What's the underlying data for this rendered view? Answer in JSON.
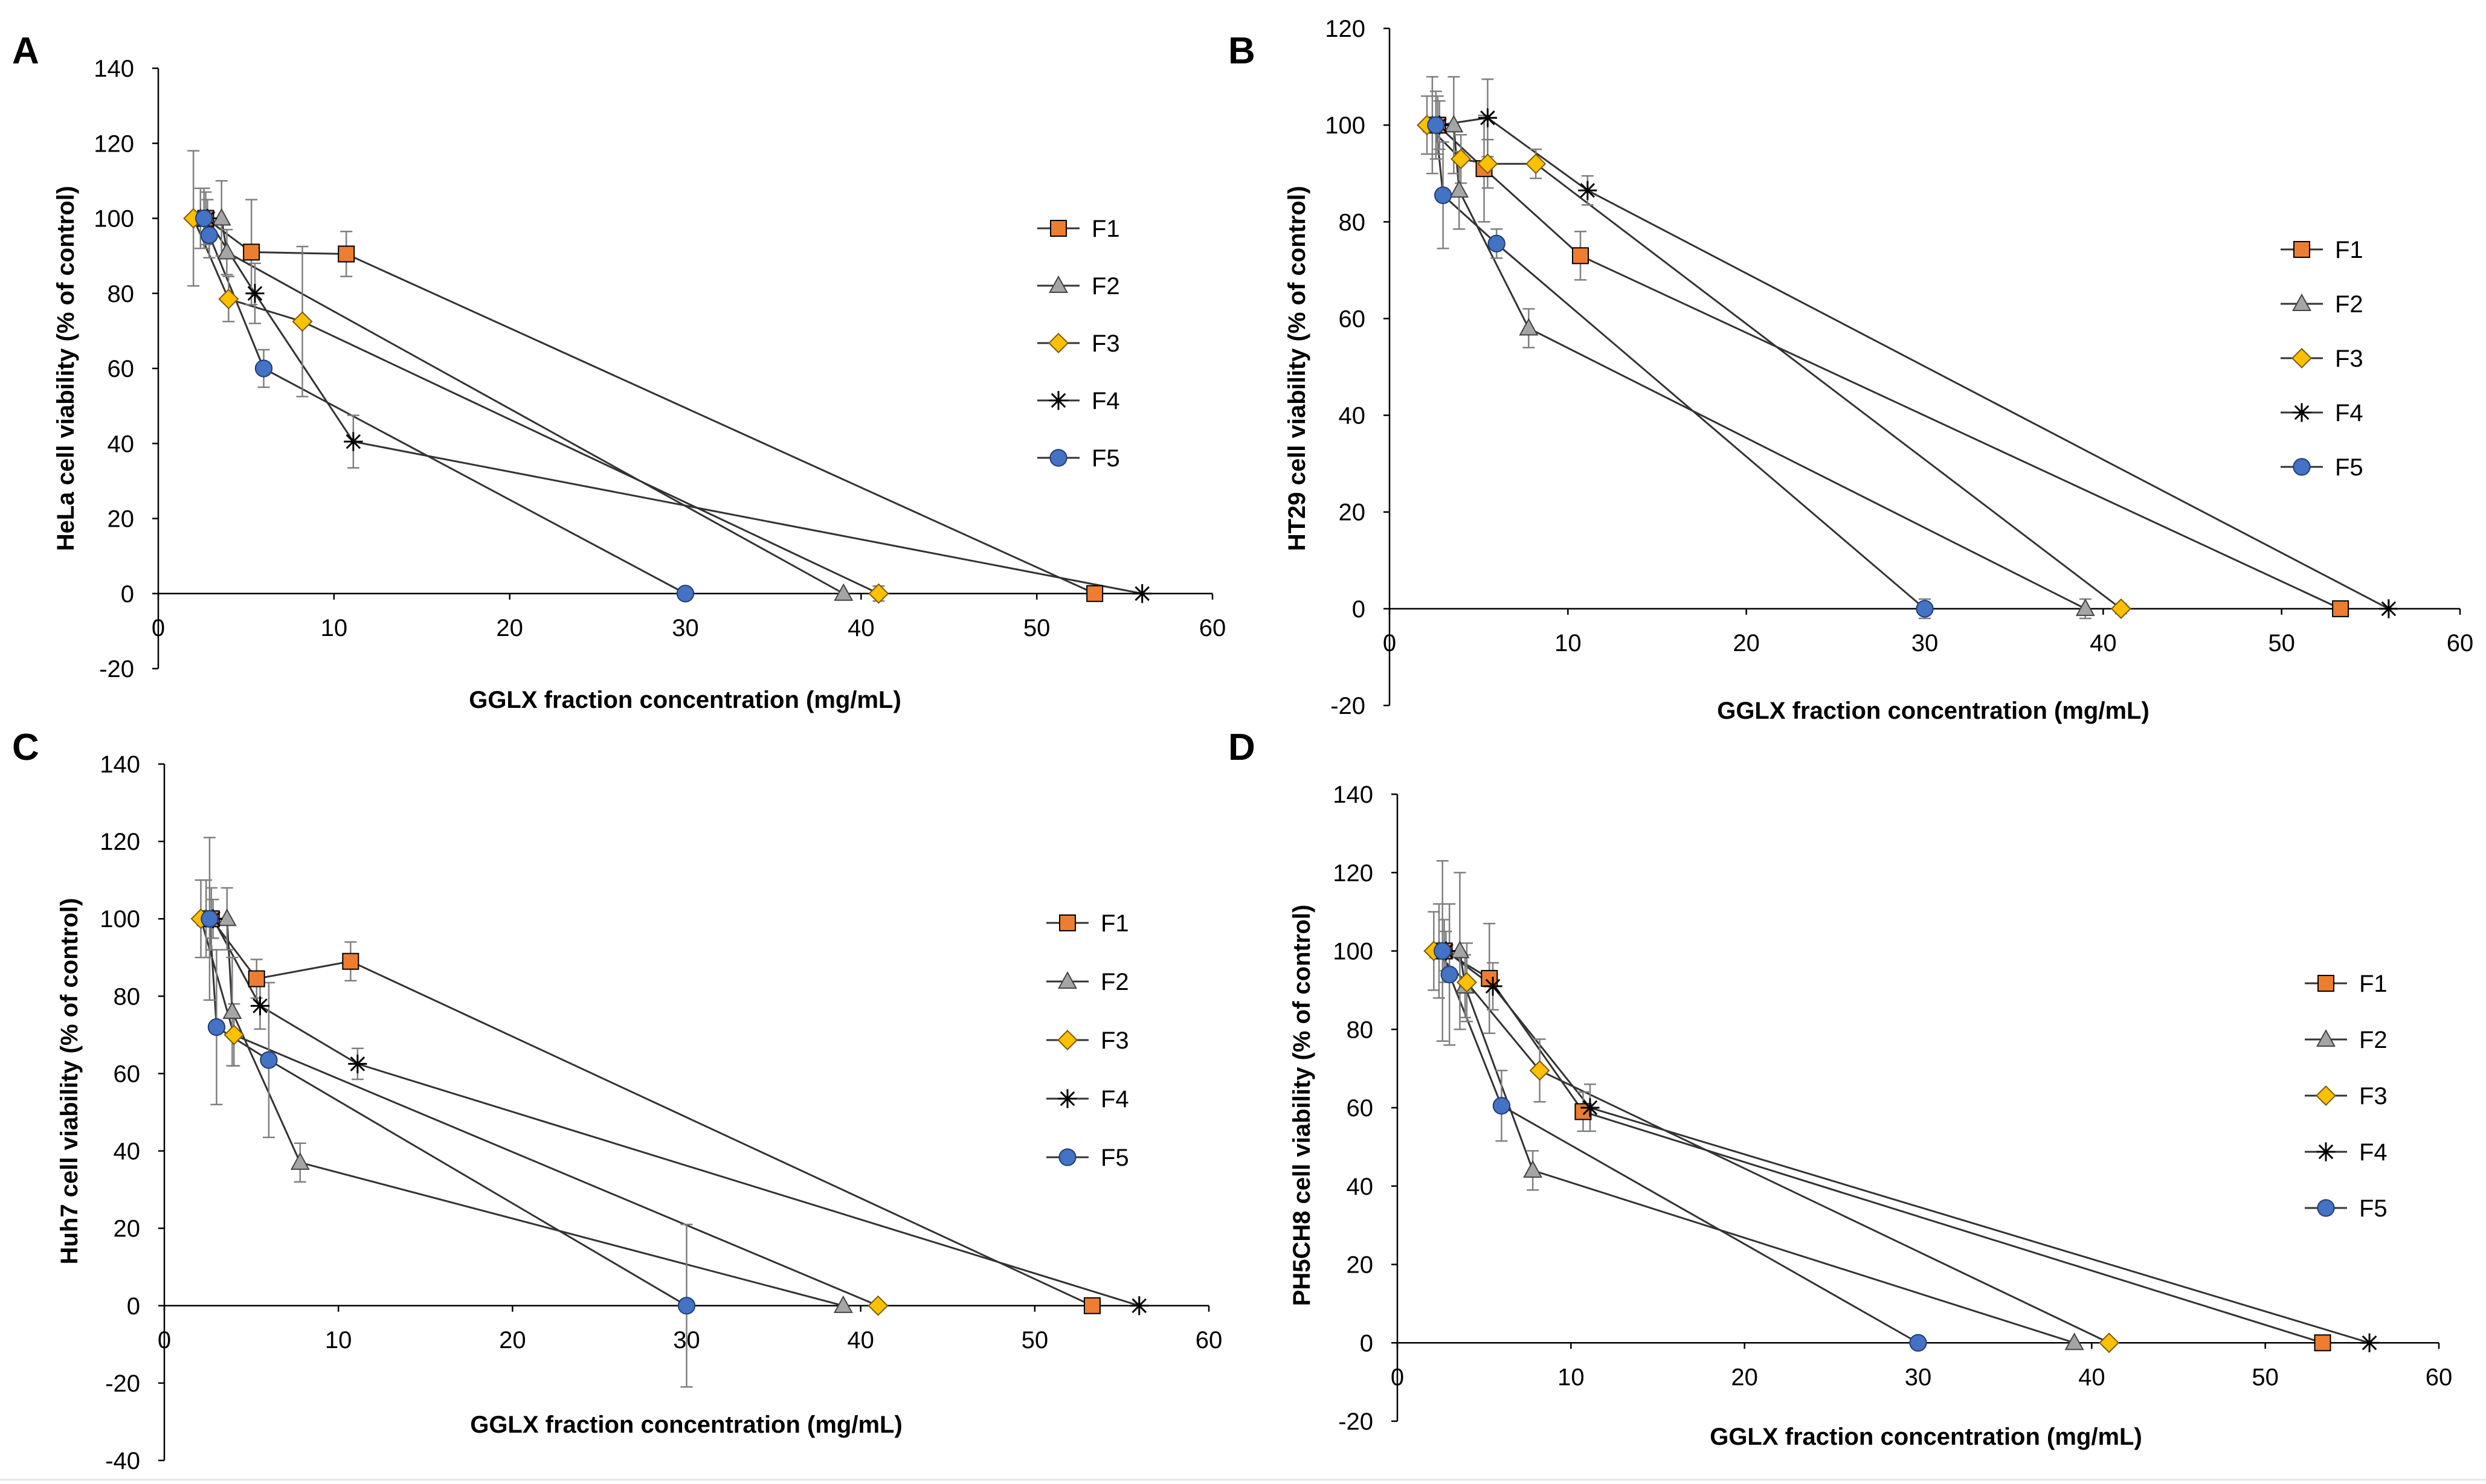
{
  "figure": {
    "colors": {
      "f1": "#ED7D31",
      "f2": "#A5A5A5",
      "f3": "#FFC000",
      "f4": "#000000",
      "f5": "#4472C4",
      "line": "#333333",
      "errbar": "#7f7f7f"
    },
    "icons": {
      "F1": "square-marker",
      "F2": "triangle-marker",
      "F3": "diamond-marker",
      "F4": "asterisk-marker",
      "F5": "circle-marker"
    }
  },
  "chart_data": [
    {
      "panel": "A",
      "type": "line",
      "title": "",
      "xlabel": "GGLX fraction concentration (mg/mL)",
      "ylabel": "HeLa cell viability (% of control)",
      "xlim": [
        0,
        60
      ],
      "ylim": [
        -20,
        140
      ],
      "xticks": [
        0,
        10,
        20,
        30,
        40,
        50,
        60
      ],
      "yticks": [
        -20,
        0,
        20,
        40,
        60,
        80,
        100,
        120,
        140
      ],
      "legend_position": "right",
      "series": [
        {
          "name": "F1",
          "x": [
            2.7,
            5.3,
            10.7,
            53.3
          ],
          "y": [
            100,
            91,
            90.5,
            0
          ],
          "err": [
            7,
            14,
            6,
            0
          ]
        },
        {
          "name": "F2",
          "x": [
            2.4,
            3.6,
            3.9,
            39
          ],
          "y": [
            100,
            100,
            91,
            0
          ],
          "err": [
            8,
            10,
            6,
            0
          ]
        },
        {
          "name": "F3",
          "x": [
            2,
            4,
            8.2,
            41
          ],
          "y": [
            100,
            78.5,
            72.5,
            0
          ],
          "err": [
            18,
            6,
            20,
            2
          ]
        },
        {
          "name": "F4",
          "x": [
            2.8,
            5.5,
            11.1,
            56
          ],
          "y": [
            100,
            80,
            40.5,
            0
          ],
          "err": [
            5,
            8,
            7,
            0
          ]
        },
        {
          "name": "F5",
          "x": [
            2.6,
            2.9,
            6,
            30
          ],
          "y": [
            100,
            95.5,
            60,
            0
          ],
          "err": [
            8,
            6,
            5,
            0
          ]
        }
      ]
    },
    {
      "panel": "B",
      "type": "line",
      "title": "",
      "xlabel": "GGLX fraction concentration (mg/mL)",
      "ylabel": "HT29 cell viability (% of control)",
      "xlim": [
        0,
        60
      ],
      "ylim": [
        -20,
        120
      ],
      "xticks": [
        0,
        10,
        20,
        30,
        40,
        50,
        60
      ],
      "yticks": [
        -20,
        0,
        20,
        40,
        60,
        80,
        100,
        120
      ],
      "legend_position": "right",
      "series": [
        {
          "name": "F1",
          "x": [
            2.7,
            5.3,
            10.7,
            53.3
          ],
          "y": [
            100,
            91,
            73,
            0
          ],
          "err": [
            6,
            11,
            5,
            0
          ]
        },
        {
          "name": "F2",
          "x": [
            2.4,
            3.6,
            3.9,
            7.8,
            39
          ],
          "y": [
            100,
            100,
            86.5,
            58,
            0
          ],
          "err": [
            10,
            10,
            8,
            4,
            2
          ]
        },
        {
          "name": "F3",
          "x": [
            2.1,
            4,
            5.5,
            8.2,
            41
          ],
          "y": [
            100,
            93,
            92,
            92,
            0
          ],
          "err": [
            6,
            5,
            5,
            3,
            1
          ]
        },
        {
          "name": "F4",
          "x": [
            2.8,
            5.5,
            11.1,
            56
          ],
          "y": [
            100,
            101.5,
            86.5,
            0
          ],
          "err": [
            5,
            8,
            3,
            0
          ]
        },
        {
          "name": "F5",
          "x": [
            2.6,
            3,
            6,
            30
          ],
          "y": [
            100,
            85.5,
            75.5,
            0
          ],
          "err": [
            7,
            11,
            3,
            2
          ]
        }
      ]
    },
    {
      "panel": "C",
      "type": "line",
      "title": "",
      "xlabel": "GGLX fraction concentration (mg/mL)",
      "ylabel": "Huh7 cell viability (% of control)",
      "xlim": [
        0,
        60
      ],
      "ylim": [
        -40,
        140
      ],
      "xticks": [
        0,
        10,
        20,
        30,
        40,
        50,
        60
      ],
      "yticks": [
        -40,
        -20,
        0,
        20,
        40,
        60,
        80,
        100,
        120,
        140
      ],
      "legend_position": "right",
      "series": [
        {
          "name": "F1",
          "x": [
            2.7,
            5.3,
            10.7,
            53.3
          ],
          "y": [
            100,
            84.5,
            89,
            0
          ],
          "err": [
            8,
            5,
            5,
            0
          ]
        },
        {
          "name": "F2",
          "x": [
            2.4,
            3.6,
            3.9,
            7.8,
            39
          ],
          "y": [
            100,
            100,
            76,
            37,
            0
          ],
          "err": [
            10,
            8,
            14,
            5,
            0
          ]
        },
        {
          "name": "F3",
          "x": [
            2.1,
            4,
            41
          ],
          "y": [
            100,
            70,
            0
          ],
          "err": [
            10,
            8,
            1
          ]
        },
        {
          "name": "F4",
          "x": [
            2.8,
            5.5,
            11.1,
            56
          ],
          "y": [
            100,
            77.5,
            62.5,
            0
          ],
          "err": [
            5,
            6,
            4,
            0
          ]
        },
        {
          "name": "F5",
          "x": [
            2.6,
            3,
            6,
            30
          ],
          "y": [
            100,
            72,
            63.5,
            0
          ],
          "err": [
            21,
            20,
            20,
            21
          ]
        }
      ]
    },
    {
      "panel": "D",
      "type": "line",
      "title": "",
      "xlabel": "GGLX fraction concentration (mg/mL)",
      "ylabel": "PH5CH8 cell viability (% of control)",
      "xlim": [
        0,
        60
      ],
      "ylim": [
        -20,
        140
      ],
      "xticks": [
        0,
        10,
        20,
        30,
        40,
        50,
        60
      ],
      "yticks": [
        -20,
        0,
        20,
        40,
        60,
        80,
        100,
        120,
        140
      ],
      "legend_position": "right",
      "series": [
        {
          "name": "F1",
          "x": [
            2.7,
            5.3,
            10.7,
            53.3
          ],
          "y": [
            100,
            93,
            59,
            0
          ],
          "err": [
            8,
            14,
            5,
            0
          ]
        },
        {
          "name": "F2",
          "x": [
            2.4,
            3.6,
            3.9,
            7.8,
            39
          ],
          "y": [
            100,
            100,
            91,
            44,
            0
          ],
          "err": [
            12,
            20,
            8,
            5,
            0
          ]
        },
        {
          "name": "F3",
          "x": [
            2.1,
            4,
            8.2,
            41
          ],
          "y": [
            100,
            92,
            69.5,
            0
          ],
          "err": [
            10,
            10,
            8,
            1
          ]
        },
        {
          "name": "F4",
          "x": [
            2.8,
            5.5,
            11.1,
            56
          ],
          "y": [
            100,
            91,
            60,
            0
          ],
          "err": [
            5,
            6,
            6,
            0
          ]
        },
        {
          "name": "F5",
          "x": [
            2.6,
            3,
            6,
            30
          ],
          "y": [
            100,
            94,
            60.5,
            0
          ],
          "err": [
            23,
            18,
            9,
            1
          ]
        }
      ]
    }
  ]
}
